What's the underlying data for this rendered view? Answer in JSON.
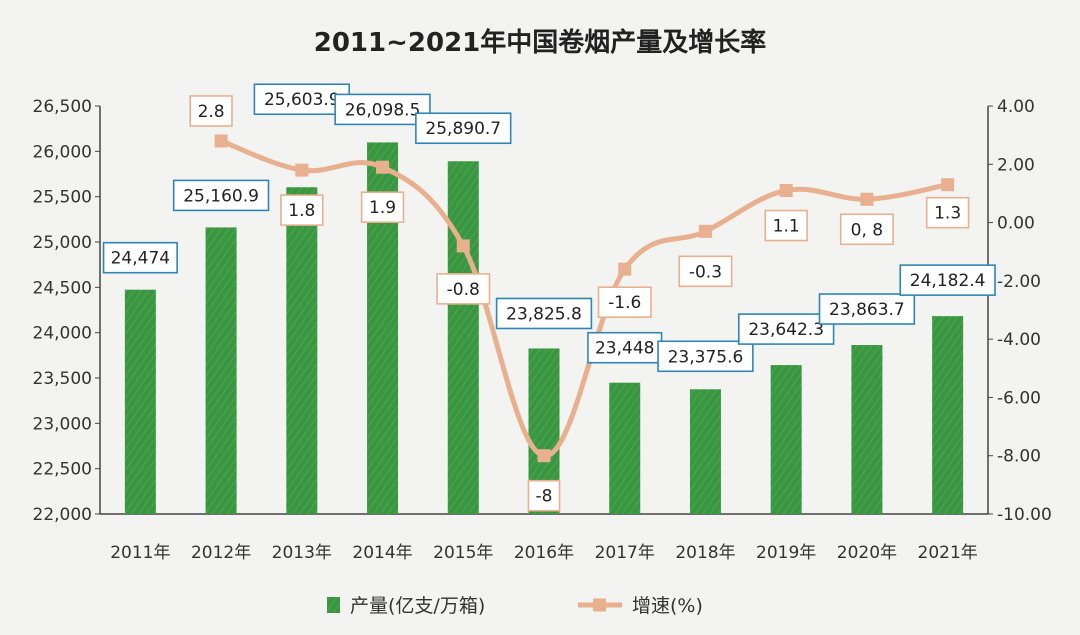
{
  "chart_data": {
    "title": "2011~2021年中国卷烟产量及增长率",
    "type": "bar+line",
    "categories": [
      "2011年",
      "2012年",
      "2013年",
      "2014年",
      "2015年",
      "2016年",
      "2017年",
      "2018年",
      "2019年",
      "2020年",
      "2021年"
    ],
    "series": [
      {
        "name": "产量(亿支/万箱)",
        "type": "bar",
        "axis": "left",
        "color": "#3a9640",
        "values": [
          24474,
          25160.9,
          25603.9,
          26098.5,
          25890.7,
          23825.8,
          23448,
          23375.6,
          23642.3,
          23863.7,
          24182.4
        ],
        "labels": [
          "24,474",
          "25,160.9",
          "25,603.9",
          "26,098.5",
          "25,890.7",
          "23,825.8",
          "23,448",
          "23,375.6",
          "23,642.3",
          "23,863.7",
          "24,182.4"
        ]
      },
      {
        "name": "增速(%)",
        "type": "line",
        "axis": "right",
        "color": "#e8b08f",
        "values": [
          null,
          2.8,
          1.8,
          1.9,
          -0.8,
          -8,
          -1.6,
          -0.3,
          1.1,
          0.8,
          1.3
        ],
        "labels": [
          "",
          "2.8",
          "1.8",
          "1.9",
          "-0.8",
          "-8",
          "-1.6",
          "-0.3",
          "1.1",
          "0, 8",
          "1.3"
        ]
      }
    ],
    "y_left": {
      "min": 22000,
      "max": 26500,
      "ticks": [
        "22,000",
        "22,500",
        "23,000",
        "23,500",
        "24,000",
        "24,500",
        "25,000",
        "25,500",
        "26,000",
        "26,500"
      ]
    },
    "y_right": {
      "min": -10,
      "max": 4,
      "ticks": [
        "-10.00",
        "-8.00",
        "-6.00",
        "-4.00",
        "-2.00",
        "0.00",
        "2.00",
        "4.00"
      ]
    },
    "legend_position": "bottom-center",
    "colors": {
      "bar": "#3a9640",
      "line": "#e8b08f",
      "bar_label_border": "#2f86b3",
      "line_label_border": "#e8b08f"
    }
  }
}
